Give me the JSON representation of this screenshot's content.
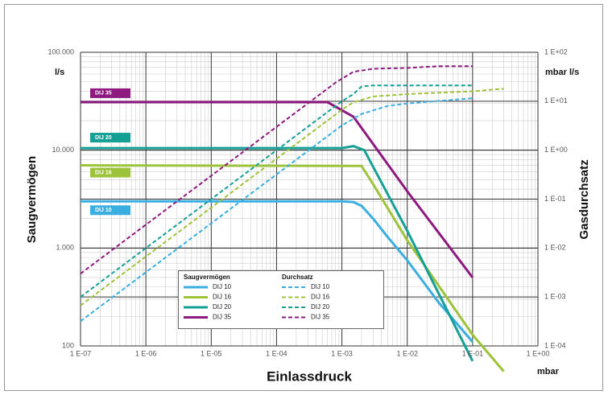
{
  "chart_data": {
    "type": "line",
    "x_label": "Einlassdruck",
    "x_unit": "mbar",
    "y_label": "Saugvermögen",
    "y_unit": "l/s",
    "y2_label": "Gasdurchsatz",
    "y2_unit": "mbar l/s",
    "xscale": "log",
    "yscale": "log",
    "y2scale": "log",
    "grid": true,
    "xlim": [
      1e-07,
      1
    ],
    "xticks": [
      {
        "value": 1e-07,
        "label": "1 E-07"
      },
      {
        "value": 1e-06,
        "label": "1 E-06"
      },
      {
        "value": 1e-05,
        "label": "1 E-05"
      },
      {
        "value": 0.0001,
        "label": "1 E-04"
      },
      {
        "value": 0.001,
        "label": "1 E-03"
      },
      {
        "value": 0.01,
        "label": "1 E-02"
      },
      {
        "value": 0.1,
        "label": "1 E-01"
      },
      {
        "value": 1,
        "label": "1 E+00"
      }
    ],
    "ylim": [
      100,
      100000
    ],
    "yticks": [
      100,
      {
        "value": 1000,
        "label": "1.000"
      },
      {
        "value": 10000,
        "label": "10.000"
      },
      {
        "value": 100000,
        "label": "100.000"
      }
    ],
    "y2lim": [
      0.0001,
      100
    ],
    "y2ticks": [
      {
        "value": 0.0001,
        "label": "1 E-04"
      },
      {
        "value": 0.001,
        "label": "1 E-03"
      },
      {
        "value": 0.01,
        "label": "1 E-02"
      },
      {
        "value": 0.1,
        "label": "1 E-01"
      },
      {
        "value": 1,
        "label": "1 E+00"
      },
      {
        "value": 10,
        "label": "1 E+01"
      },
      {
        "value": 100,
        "label": "1 E+02"
      }
    ],
    "legend_titles": [
      "Saugvermögen",
      "Durchsatz"
    ],
    "series": [
      {
        "name": "DIJ 10",
        "color": "#3aaee0",
        "style": "solid",
        "x": [
          1e-07,
          0.001,
          0.0015,
          0.002,
          0.003,
          0.005,
          0.01,
          0.03,
          0.1
        ],
        "values": [
          3000,
          3000,
          2950,
          2700,
          2000,
          1300,
          750,
          280,
          110
        ]
      },
      {
        "name": "DIJ 16",
        "color": "#9dc33b",
        "style": "solid",
        "x": [
          1e-07,
          0.002,
          0.003,
          0.01,
          0.1,
          0.3
        ],
        "values": [
          7000,
          6900,
          4500,
          1200,
          130,
          55
        ]
      },
      {
        "name": "DIJ 20",
        "color": "#15a096",
        "style": "solid",
        "x": [
          1e-07,
          0.001,
          0.0015,
          0.0022,
          0.01,
          0.1
        ],
        "values": [
          10500,
          10500,
          11000,
          10000,
          1500,
          70
        ]
      },
      {
        "name": "DIJ 35",
        "color": "#8e1a80",
        "style": "solid",
        "x": [
          1e-07,
          0.0006,
          0.0015,
          0.01,
          0.1
        ],
        "values": [
          31000,
          31000,
          22000,
          3800,
          500
        ]
      },
      {
        "name": "DIJ 10",
        "color": "#3aaee0",
        "style": "dashed",
        "axis": "y2",
        "x": [
          1e-07,
          0.001,
          0.002,
          0.005,
          0.01,
          0.1
        ],
        "values": [
          0.00032,
          3.2,
          5.5,
          8,
          9,
          11.5
        ]
      },
      {
        "name": "DIJ 16",
        "color": "#9dc33b",
        "style": "dashed",
        "axis": "y2",
        "x": [
          1e-07,
          0.001,
          0.0015,
          0.003,
          0.01,
          0.1,
          0.3
        ],
        "values": [
          0.00067,
          6.7,
          9.5,
          12.5,
          14,
          16,
          18
        ]
      },
      {
        "name": "DIJ 20",
        "color": "#15a096",
        "style": "dashed",
        "axis": "y2",
        "x": [
          1e-07,
          0.001,
          0.0015,
          0.002,
          0.003,
          0.1
        ],
        "values": [
          0.001,
          10,
          14,
          20,
          21,
          21
        ]
      },
      {
        "name": "DIJ 35",
        "color": "#8e1a80",
        "style": "dashed",
        "axis": "y2",
        "x": [
          1e-07,
          0.0008,
          0.0015,
          0.003,
          0.01,
          0.03,
          0.1
        ],
        "values": [
          0.003,
          24,
          40,
          46,
          48,
          52,
          52
        ]
      }
    ]
  }
}
